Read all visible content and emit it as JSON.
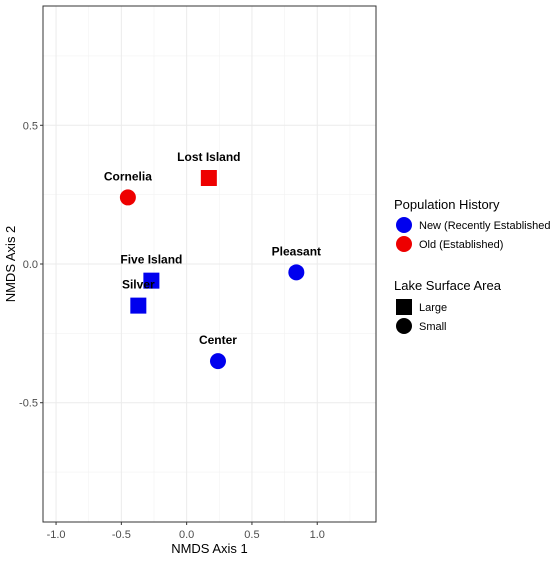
{
  "chart_data": {
    "type": "scatter",
    "xlabel": "NMDS Axis 1",
    "ylabel": "NMDS Axis 2",
    "xlim": [
      -1.1,
      1.45
    ],
    "ylim": [
      -0.93,
      0.93
    ],
    "x_ticks": [
      -1.0,
      -0.5,
      0.0,
      0.5,
      1.0
    ],
    "x_tick_labels": [
      "-1.0",
      "-0.5",
      "0.0",
      "0.5",
      "1.0"
    ],
    "y_ticks": [
      -0.5,
      0.0,
      0.5
    ],
    "y_tick_labels": [
      "-0.5",
      "0.0",
      "0.5"
    ],
    "grid": true,
    "points": [
      {
        "label": "Cornelia",
        "x": -0.45,
        "y": 0.24,
        "history": "Old (Established)",
        "area": "Small"
      },
      {
        "label": "Lost Island",
        "x": 0.17,
        "y": 0.31,
        "history": "Old (Established)",
        "area": "Large"
      },
      {
        "label": "Pleasant",
        "x": 0.84,
        "y": -0.03,
        "history": "New (Recently Established)",
        "area": "Small"
      },
      {
        "label": "Five Island",
        "x": -0.27,
        "y": -0.06,
        "history": "New (Recently Established)",
        "area": "Large"
      },
      {
        "label": "Silver",
        "x": -0.37,
        "y": -0.15,
        "history": "New (Recently Established)",
        "area": "Large"
      },
      {
        "label": "Center",
        "x": 0.24,
        "y": -0.35,
        "history": "New (Recently Established)",
        "area": "Small"
      }
    ],
    "legend": {
      "placement": "right",
      "color_title": "Population History",
      "color_entries": [
        {
          "label": "New (Recently Established)",
          "color": "#0000ee"
        },
        {
          "label": "Old (Established)",
          "color": "#ee0000"
        }
      ],
      "shape_title": "Lake Surface Area",
      "shape_entries": [
        {
          "label": "Large",
          "shape": "square"
        },
        {
          "label": "Small",
          "shape": "circle"
        }
      ]
    }
  }
}
